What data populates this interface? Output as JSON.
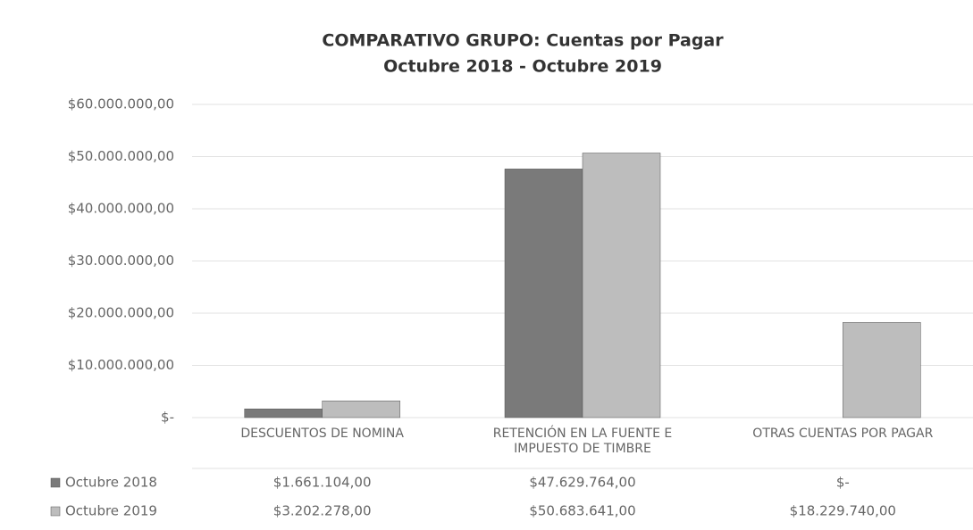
{
  "chart_data": {
    "type": "bar",
    "title": "COMPARATIVO GRUPO: Cuentas por Pagar",
    "subtitle": "Octubre 2018 - Octubre 2019",
    "categories": [
      "DESCUENTOS DE NOMINA",
      "RETENCIÓN EN LA FUENTE E IMPUESTO DE TIMBRE",
      "OTRAS CUENTAS POR PAGAR"
    ],
    "series": [
      {
        "name": "Octubre 2018",
        "color": "#7a7a7a",
        "values": [
          1661104,
          47629764,
          0
        ],
        "value_labels": [
          "$1.661.104,00",
          "$47.629.764,00",
          "$-"
        ]
      },
      {
        "name": "Octubre 2019",
        "color": "#bdbdbd",
        "values": [
          3202278,
          50683641,
          18229740
        ],
        "value_labels": [
          "$3.202.278,00",
          "$50.683.641,00",
          "$18.229.740,00"
        ]
      }
    ],
    "ylim": [
      0,
      60000000
    ],
    "yticks": [
      {
        "value": 0,
        "label": "$-"
      },
      {
        "value": 10000000,
        "label": "$10.000.000,00"
      },
      {
        "value": 20000000,
        "label": "$20.000.000,00"
      },
      {
        "value": 30000000,
        "label": "$30.000.000,00"
      },
      {
        "value": 40000000,
        "label": "$40.000.000,00"
      },
      {
        "value": 50000000,
        "label": "$50.000.000,00"
      },
      {
        "value": 60000000,
        "label": "$60.000.000,00"
      }
    ],
    "grid": true
  }
}
